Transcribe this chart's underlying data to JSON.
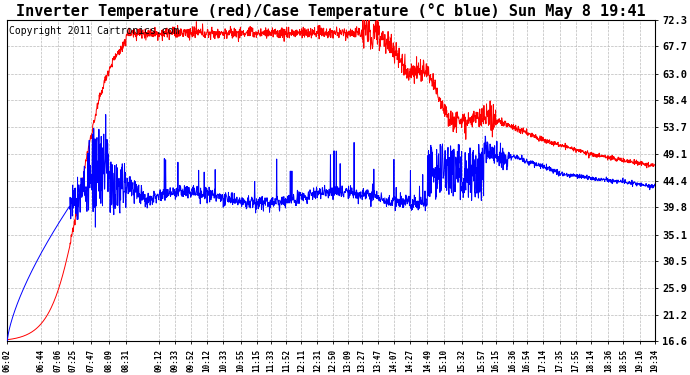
{
  "title": "Inverter Temperature (red)/Case Temperature (°C blue) Sun May 8 19:41",
  "copyright": "Copyright 2011 Cartronics.com",
  "yticks": [
    16.6,
    21.2,
    25.9,
    30.5,
    35.1,
    39.8,
    44.4,
    49.1,
    53.7,
    58.4,
    63.0,
    67.7,
    72.3
  ],
  "ylim": [
    16.6,
    72.3
  ],
  "xtick_labels": [
    "06:02",
    "06:44",
    "07:06",
    "07:25",
    "07:47",
    "08:09",
    "08:31",
    "09:12",
    "09:33",
    "09:52",
    "10:12",
    "10:33",
    "10:55",
    "11:15",
    "11:33",
    "11:52",
    "12:11",
    "12:31",
    "12:50",
    "13:09",
    "13:27",
    "13:47",
    "14:07",
    "14:27",
    "14:49",
    "15:10",
    "15:32",
    "15:57",
    "16:15",
    "16:36",
    "16:54",
    "17:14",
    "17:35",
    "17:55",
    "18:14",
    "18:36",
    "18:55",
    "19:16",
    "19:34"
  ],
  "bg_color": "#ffffff",
  "grid_color": "#bbbbbb",
  "red_color": "#ff0000",
  "blue_color": "#0000ff",
  "title_fontsize": 11,
  "copyright_fontsize": 7
}
